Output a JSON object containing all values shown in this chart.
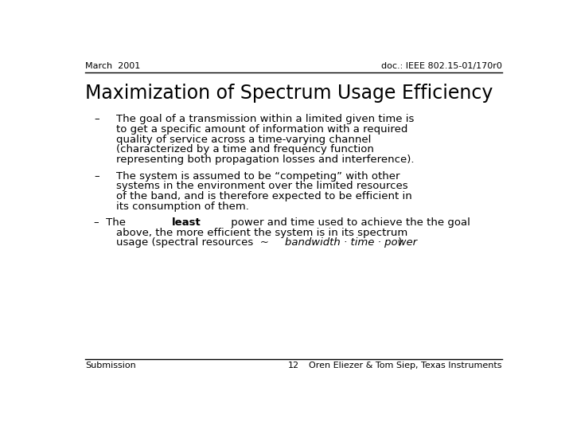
{
  "slide_bg": "#ffffff",
  "header_left": "March  2001",
  "header_right": "doc.: IEEE 802.15-01/170r0",
  "title": "Maximization of Spectrum Usage Efficiency",
  "b1_lines": [
    "The goal of a transmission within a limited given time is",
    "to get a specific amount of information with a required",
    "quality of service across a time-varying channel",
    "(characterized by a time and frequency function",
    "representing both propagation losses and interference)."
  ],
  "b2_lines": [
    "The system is assumed to be “competing” with other",
    "systems in the environment over the limited resources",
    "of the band, and is therefore expected to be efficient in",
    "its consumption of them."
  ],
  "b3_line1_pre": "–  The ",
  "b3_line1_bold": "least",
  "b3_line1_post": " power and time used to achieve the the goal",
  "b3_line2": "above, the more efficient the system is in its spectrum",
  "b3_line3_pre": "usage (spectral resources  ~  ",
  "b3_line3_italic": "bandwidth · time · power",
  "b3_line3_post": " )",
  "footer_left": "Submission",
  "footer_center": "12",
  "footer_right": "Oren Eliezer & Tom Siep, Texas Instruments",
  "header_fontsize": 8,
  "title_fontsize": 17,
  "bullet_fontsize": 9.5,
  "footer_fontsize": 8,
  "text_color": "#000000",
  "line_color": "#000000",
  "dash": "–"
}
